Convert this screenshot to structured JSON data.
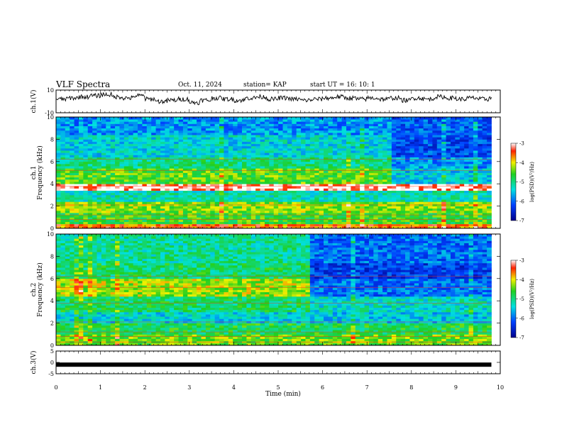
{
  "header": {
    "title": "VLF Spectra",
    "date": "Oct. 11, 2024",
    "station": "station= KAP",
    "start": "start  UT  =   16: 10: 1"
  },
  "chart_data": [
    {
      "type": "line",
      "name": "ch1-waveform",
      "ylabel": "ch.1(V)",
      "ylim": [
        -10,
        10
      ],
      "yticks": [
        "10",
        "-10"
      ],
      "xlim": [
        0,
        10
      ],
      "x": [
        0,
        0.25,
        0.5,
        0.75,
        1,
        1.25,
        1.5,
        1.75,
        2,
        2.25,
        2.5,
        2.75,
        3,
        3.25,
        3.5,
        3.75,
        4,
        4.25,
        4.5,
        4.75,
        5,
        5.25,
        5.5,
        5.75,
        6,
        6.25,
        6.5,
        6.75,
        7,
        7.25,
        7.5,
        7.75,
        8,
        8.25,
        8.5,
        8.75,
        9,
        9.25,
        9.5,
        9.75
      ],
      "y": [
        2,
        3,
        4,
        5,
        6,
        4,
        3,
        5,
        2,
        0,
        1,
        2,
        -1,
        1,
        3,
        2,
        1,
        3,
        4,
        2,
        3,
        2,
        1,
        2,
        3,
        4,
        3,
        2,
        3,
        2,
        3,
        1,
        3,
        2,
        4,
        3,
        2,
        3,
        2,
        3
      ]
    },
    {
      "type": "heatmap",
      "name": "ch1-spectrogram",
      "ylabel": "ch.1\nFrequency (kHz)",
      "yticks": [
        "0",
        "2",
        "4",
        "6",
        "8",
        "10"
      ],
      "ylim": [
        0,
        10
      ],
      "xlim": [
        0,
        10
      ],
      "x_bands": [
        [
          0,
          7.6
        ],
        [
          7.6,
          9.8
        ]
      ],
      "freq_bands_khz": [
        {
          "f": [
            0,
            0.5
          ],
          "level": [
            -3.6,
            -3.6
          ]
        },
        {
          "f": [
            0.5,
            1.5
          ],
          "level": [
            -4.6,
            -4.6
          ]
        },
        {
          "f": [
            1.5,
            2.5
          ],
          "level": [
            -4.3,
            -4.3
          ]
        },
        {
          "f": [
            2.5,
            3.5
          ],
          "level": [
            -5.2,
            -5.2
          ]
        },
        {
          "f": [
            3.5,
            4.0
          ],
          "level": [
            -3.1,
            -3.1
          ]
        },
        {
          "f": [
            4.0,
            5.5
          ],
          "level": [
            -4.5,
            -5.5
          ]
        },
        {
          "f": [
            5.5,
            6.5
          ],
          "level": [
            -5.0,
            -5.8
          ]
        },
        {
          "f": [
            6.5,
            8.5
          ],
          "level": [
            -5.4,
            -6.2
          ]
        },
        {
          "f": [
            8.5,
            10
          ],
          "level": [
            -5.8,
            -6.1
          ]
        }
      ],
      "colorbar": {
        "label": "log(PSD)(V²/Hz)",
        "range": [
          -7,
          -3
        ],
        "ticks": [
          "-3",
          "-4",
          "-5",
          "-6",
          "-7"
        ]
      }
    },
    {
      "type": "heatmap",
      "name": "ch2-spectrogram",
      "ylabel": "ch.2\nFrequency (kHz)",
      "yticks": [
        "0",
        "2",
        "4",
        "6",
        "8",
        "10"
      ],
      "ylim": [
        0,
        10
      ],
      "xlim": [
        0,
        10
      ],
      "x_bands": [
        [
          0,
          5.7
        ],
        [
          5.7,
          9.8
        ]
      ],
      "freq_bands_khz": [
        {
          "f": [
            0,
            1.0
          ],
          "level": [
            -4.4,
            -4.4
          ]
        },
        {
          "f": [
            1.0,
            2.0
          ],
          "level": [
            -4.8,
            -4.8
          ]
        },
        {
          "f": [
            2.0,
            3.0
          ],
          "level": [
            -5.4,
            -5.5
          ]
        },
        {
          "f": [
            3.0,
            4.5
          ],
          "level": [
            -4.9,
            -5.3
          ]
        },
        {
          "f": [
            4.5,
            6.0
          ],
          "level": [
            -4.2,
            -6.0
          ]
        },
        {
          "f": [
            6.0,
            7.5
          ],
          "level": [
            -4.9,
            -6.3
          ]
        },
        {
          "f": [
            7.5,
            10
          ],
          "level": [
            -5.1,
            -6.0
          ]
        }
      ],
      "colorbar": {
        "label": "log(PSD)(V²/Hz)",
        "range": [
          -7,
          -3
        ],
        "ticks": [
          "-3",
          "-4",
          "-5",
          "-6",
          "-7"
        ]
      }
    },
    {
      "type": "line",
      "name": "ch3-waveform",
      "ylabel": "ch.3(V)",
      "ylim": [
        -5,
        5
      ],
      "yticks": [
        "5",
        "0",
        "-5"
      ],
      "xlim": [
        0,
        10
      ],
      "x": [
        0,
        9.8
      ],
      "y": [
        -1,
        -1
      ],
      "xlabel": "Time  (min)",
      "xticks": [
        "0",
        "1",
        "2",
        "3",
        "4",
        "5",
        "6",
        "7",
        "8",
        "9",
        "10"
      ]
    }
  ]
}
